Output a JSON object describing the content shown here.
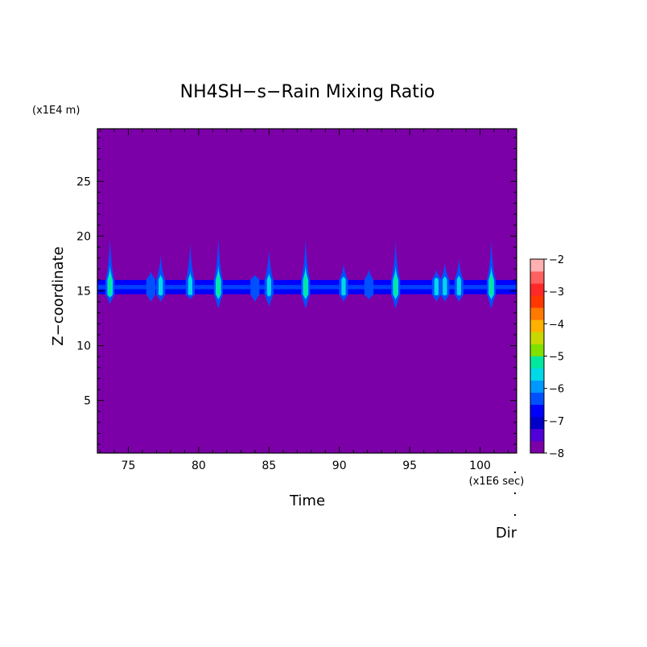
{
  "chart_data": {
    "type": "heatmap",
    "title": "NH4SH−s−Rain Mixing Ratio",
    "xlabel": "Time",
    "ylabel": "Z−coordinate",
    "x_unit": "(x1E6 sec)",
    "y_unit": "(x1E4 m)",
    "extra_label": "Dir",
    "xlim": [
      72.8,
      102.6
    ],
    "ylim": [
      0.2,
      29.8
    ],
    "x_ticks": [
      75,
      80,
      85,
      90,
      95,
      100
    ],
    "y_ticks": [
      5,
      10,
      15,
      20,
      25
    ],
    "grid": false,
    "background_color": "#7c00a8",
    "band": {
      "z_min": 14.7,
      "z_max": 16.0,
      "level": -6.8
    },
    "spikes": [
      {
        "x": 73.7,
        "z_bottom": 13.8,
        "z_top": 19.8,
        "peak": -5.2
      },
      {
        "x": 76.6,
        "z_bottom": 14.0,
        "z_top": 16.8,
        "peak": -5.8
      },
      {
        "x": 77.3,
        "z_bottom": 14.0,
        "z_top": 18.3,
        "peak": -5.5
      },
      {
        "x": 79.4,
        "z_bottom": 14.2,
        "z_top": 19.3,
        "peak": -5.5
      },
      {
        "x": 81.4,
        "z_bottom": 13.4,
        "z_top": 19.9,
        "peak": -5.0
      },
      {
        "x": 84.0,
        "z_bottom": 14.0,
        "z_top": 16.5,
        "peak": -5.8
      },
      {
        "x": 85.0,
        "z_bottom": 13.6,
        "z_top": 18.8,
        "peak": -5.4
      },
      {
        "x": 87.6,
        "z_bottom": 13.4,
        "z_top": 19.8,
        "peak": -4.9
      },
      {
        "x": 90.3,
        "z_bottom": 14.0,
        "z_top": 17.5,
        "peak": -5.5
      },
      {
        "x": 92.1,
        "z_bottom": 14.2,
        "z_top": 17.0,
        "peak": -5.8
      },
      {
        "x": 94.0,
        "z_bottom": 13.4,
        "z_top": 19.6,
        "peak": -5.0
      },
      {
        "x": 96.9,
        "z_bottom": 14.0,
        "z_top": 17.0,
        "peak": -5.7
      },
      {
        "x": 97.5,
        "z_bottom": 14.0,
        "z_top": 17.6,
        "peak": -5.5
      },
      {
        "x": 98.5,
        "z_bottom": 14.0,
        "z_top": 18.0,
        "peak": -5.6
      },
      {
        "x": 100.8,
        "z_bottom": 13.4,
        "z_top": 19.6,
        "peak": -4.8
      }
    ],
    "colorbar": {
      "min": -8,
      "max": -2,
      "tick_labels": [
        "−2",
        "−3",
        "−4",
        "−5",
        "−6",
        "−7",
        "−8"
      ],
      "tick_values": [
        -2,
        -3,
        -4,
        -5,
        -6,
        -7,
        -8
      ],
      "colors": [
        "#7c00a8",
        "#5000d8",
        "#0000c8",
        "#0000ff",
        "#0050ff",
        "#0098ff",
        "#00d8e8",
        "#00e8a0",
        "#80e000",
        "#c8d800",
        "#ffb000",
        "#ff7800",
        "#ff3800",
        "#ff2828",
        "#ff6060",
        "#ffb0b0"
      ]
    }
  }
}
